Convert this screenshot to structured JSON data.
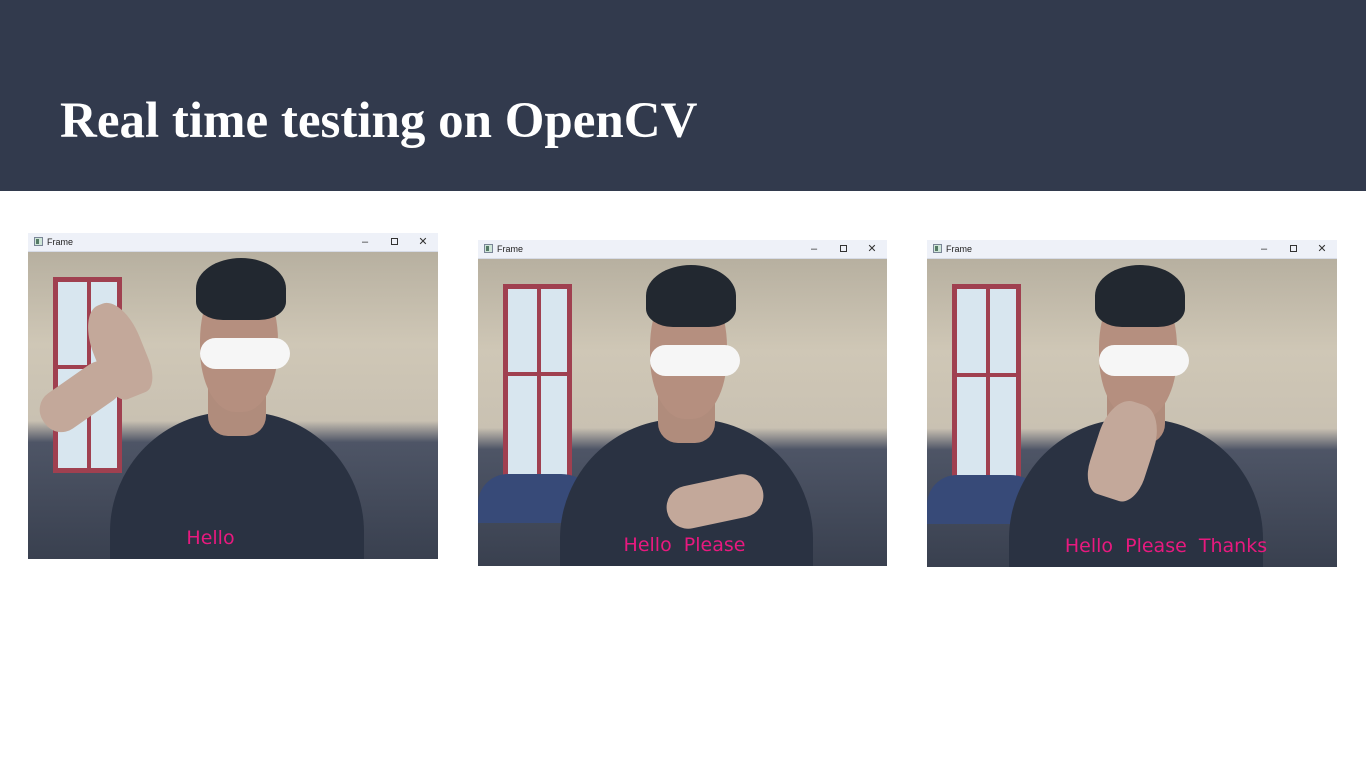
{
  "slide": {
    "title": "Real time testing on OpenCV",
    "header_color": "#323a4d"
  },
  "windows": [
    {
      "title": "Frame",
      "caption": "Hello",
      "controls": {
        "minimize": "–",
        "close": "✕"
      },
      "gesture": "wave-hand"
    },
    {
      "title": "Frame",
      "caption": "Hello  Please",
      "controls": {
        "minimize": "–",
        "close": "✕"
      },
      "gesture": "hand-on-chest"
    },
    {
      "title": "Frame",
      "caption": "Hello  Please  Thanks",
      "controls": {
        "minimize": "–",
        "close": "✕"
      },
      "gesture": "hand-on-mouth"
    }
  ],
  "caption_color": "#e8197f",
  "icons": {
    "app": "opencv-window-icon",
    "minimize": "minimize-icon",
    "maximize": "maximize-icon",
    "close": "close-icon"
  }
}
